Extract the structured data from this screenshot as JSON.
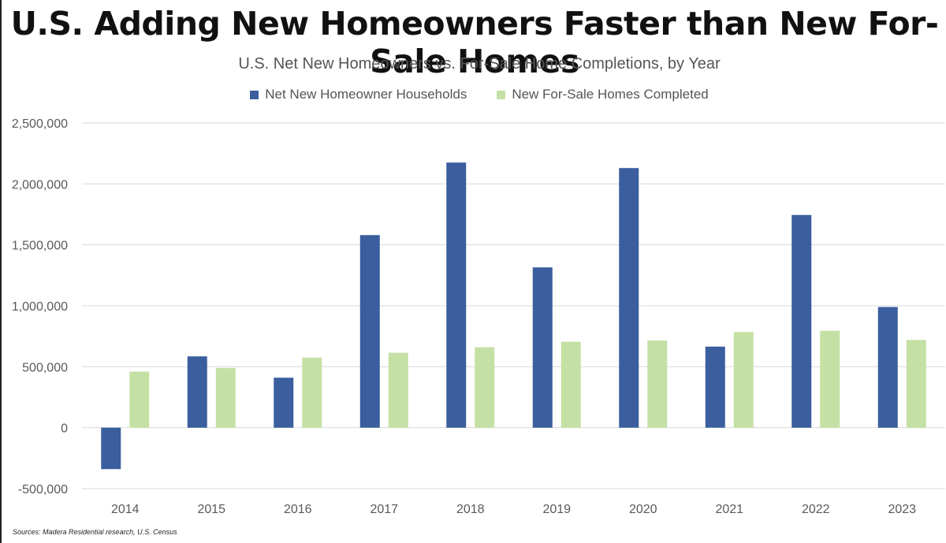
{
  "chart_data": {
    "type": "bar",
    "title": "U.S. Adding New Homeowners Faster than New For-Sale Homes",
    "subtitle": "U.S. Net New Homeowners vs. For-Sale Home Completions, by Year",
    "categories": [
      "2014",
      "2015",
      "2016",
      "2017",
      "2018",
      "2019",
      "2020",
      "2021",
      "2022",
      "2023"
    ],
    "series": [
      {
        "name": "Net New Homeowner Households",
        "color": "#3A5E9E",
        "values": [
          -340000,
          585000,
          410000,
          1580000,
          2175000,
          1315000,
          2130000,
          665000,
          1745000,
          990000
        ]
      },
      {
        "name": "New For-Sale Homes Completed",
        "color": "#C5E0A5",
        "values": [
          460000,
          490000,
          575000,
          615000,
          660000,
          705000,
          715000,
          785000,
          795000,
          720000
        ]
      }
    ],
    "ylim": [
      -500000,
      2500000
    ],
    "yticks": [
      2500000,
      2000000,
      1500000,
      1000000,
      500000,
      0,
      -500000
    ],
    "ytick_labels": [
      "2,500,000",
      "2,000,000",
      "1,500,000",
      "1,000,000",
      "500,000",
      "0",
      "-500,000"
    ],
    "xlabel": "",
    "ylabel": "",
    "grid": true,
    "legend_position": "top-center"
  },
  "source": "Sources: Madera Residential research, U.S. Census"
}
